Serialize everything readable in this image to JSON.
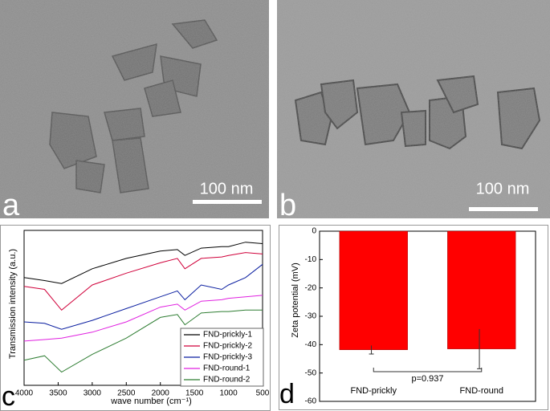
{
  "images": [
    {
      "label": "a",
      "scale_bar": "100 nm"
    },
    {
      "label": "b",
      "scale_bar": "100 nm"
    }
  ],
  "chart_data": [
    {
      "type": "line",
      "panel_label": "c",
      "x_label": "wave number (cm⁻¹)",
      "y_label": "Transmission intensity (a.u.)",
      "x": [
        4000,
        3700,
        3450,
        3000,
        2500,
        2000,
        1750,
        1640,
        1400,
        1100,
        1000,
        750,
        500
      ],
      "xlim": [
        4000,
        500
      ],
      "xticks": [
        4000,
        3500,
        3000,
        2500,
        2000,
        1500,
        1000,
        500
      ],
      "ylim": [
        -0.5,
        10
      ],
      "legend": "lower right",
      "series": [
        {
          "name": "FND-prickly-1",
          "color": "#000000",
          "values": [
            6.8,
            6.6,
            6.4,
            7.4,
            8.1,
            8.6,
            8.7,
            8.3,
            8.8,
            8.9,
            8.9,
            9.2,
            9.1
          ]
        },
        {
          "name": "FND-prickly-2",
          "color": "#d0003a",
          "values": [
            6.2,
            6.0,
            4.6,
            6.3,
            7.1,
            7.8,
            8.1,
            7.4,
            8.1,
            8.2,
            8.3,
            8.5,
            8.4
          ]
        },
        {
          "name": "FND-prickly-3",
          "color": "#0a1ea0",
          "values": [
            3.8,
            3.7,
            3.3,
            3.9,
            4.7,
            5.5,
            5.9,
            5.3,
            6.3,
            6.0,
            6.3,
            6.8,
            7.7
          ]
        },
        {
          "name": "FND-round-1",
          "color": "#e020e0",
          "values": [
            2.5,
            2.6,
            2.7,
            3.1,
            3.8,
            4.8,
            5.0,
            4.6,
            5.2,
            5.3,
            5.4,
            5.5,
            5.6
          ]
        },
        {
          "name": "FND-round-2",
          "color": "#2e7d32",
          "values": [
            1.2,
            1.5,
            0.4,
            1.6,
            2.7,
            4.1,
            4.3,
            3.6,
            4.4,
            4.5,
            4.5,
            4.6,
            4.6
          ]
        }
      ]
    },
    {
      "type": "bar",
      "panel_label": "d",
      "y_label": "Zeta potential (mV)",
      "categories": [
        "FND-prickly",
        "FND-round"
      ],
      "values": [
        -41.8,
        -41.5
      ],
      "errors": [
        1.5,
        7
      ],
      "color": "#ff0000",
      "ylim": [
        -60,
        0
      ],
      "yticks": [
        0,
        -10,
        -20,
        -30,
        -40,
        -50,
        -60
      ],
      "annotation": "p=0.937"
    }
  ]
}
